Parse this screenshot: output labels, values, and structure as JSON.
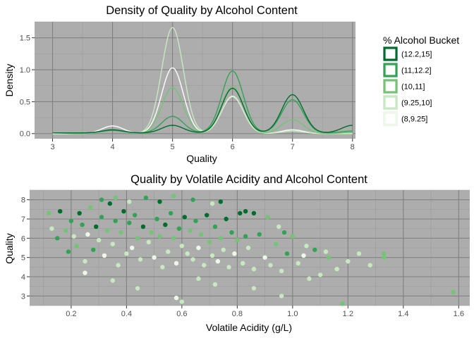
{
  "chart_data": [
    {
      "type": "line",
      "title": "Density of Quality by Alcohol Content",
      "xlabel": "Quality",
      "ylabel": "Density",
      "xlim": [
        2.7,
        8.05
      ],
      "ylim": [
        -0.08,
        1.75
      ],
      "x_ticks": [
        3,
        4,
        5,
        6,
        7,
        8
      ],
      "y_ticks": [
        0.0,
        0.5,
        1.0,
        1.5
      ],
      "y_tick_labels": [
        "0.0",
        "0.5",
        "1.0",
        "1.5"
      ],
      "grid": true,
      "legend_position": "right",
      "legend_title": "% Alcohol Bucket",
      "series": [
        {
          "name": "(12.2,15]",
          "color": "#006d2c",
          "baseline": 0.01,
          "peaks": [
            {
              "x": 4,
              "h": 0.05
            },
            {
              "x": 5,
              "h": 0.12
            },
            {
              "x": 6,
              "h": 0.7
            },
            {
              "x": 7,
              "h": 0.6
            },
            {
              "x": 8,
              "h": 0.12
            }
          ]
        },
        {
          "name": "(11,12.2]",
          "color": "#31a354",
          "baseline": 0.01,
          "peaks": [
            {
              "x": 4,
              "h": 0.04
            },
            {
              "x": 5,
              "h": 0.26
            },
            {
              "x": 6,
              "h": 0.97
            },
            {
              "x": 7,
              "h": 0.52
            },
            {
              "x": 8,
              "h": 0.03
            }
          ]
        },
        {
          "name": "(10,11]",
          "color": "#74c476",
          "baseline": 0.0,
          "peaks": [
            {
              "x": 3,
              "h": 0.01
            },
            {
              "x": 4,
              "h": 0.06
            },
            {
              "x": 5,
              "h": 0.72
            },
            {
              "x": 6,
              "h": 0.74
            },
            {
              "x": 7,
              "h": 0.22
            },
            {
              "x": 8,
              "h": 0.02
            }
          ]
        },
        {
          "name": "(9.25,10]",
          "color": "#c7e9c0",
          "baseline": 0.0,
          "peaks": [
            {
              "x": 3,
              "h": 0.01
            },
            {
              "x": 4,
              "h": 0.06
            },
            {
              "x": 5,
              "h": 1.66
            },
            {
              "x": 6,
              "h": 0.59
            },
            {
              "x": 7,
              "h": 0.04
            }
          ]
        },
        {
          "name": "(8,9.25]",
          "color": "#ffffff",
          "baseline": 0.0,
          "peaks": [
            {
              "x": 4,
              "h": 0.12
            },
            {
              "x": 5,
              "h": 1.03
            },
            {
              "x": 6,
              "h": 0.58
            },
            {
              "x": 7,
              "h": 0.06
            }
          ]
        }
      ]
    },
    {
      "type": "scatter",
      "title": "Quality by Volatile Acidity and Alcohol Content",
      "xlabel": "Volatile Acidity (g/L)",
      "ylabel": "Quality",
      "xlim": [
        0.05,
        1.64
      ],
      "ylim": [
        2.5,
        8.5
      ],
      "x_ticks": [
        0.2,
        0.4,
        0.6,
        0.8,
        1.0,
        1.2,
        1.4,
        1.6
      ],
      "y_ticks": [
        3,
        4,
        5,
        6,
        7,
        8
      ],
      "grid": true,
      "point_color_by": "% Alcohol Bucket",
      "points": [
        [
          0.12,
          7.3,
          2
        ],
        [
          0.13,
          6.5,
          3
        ],
        [
          0.15,
          6.0,
          1
        ],
        [
          0.16,
          7.4,
          0
        ],
        [
          0.18,
          6.4,
          2
        ],
        [
          0.19,
          5.3,
          1
        ],
        [
          0.2,
          6.9,
          1
        ],
        [
          0.21,
          6.1,
          3
        ],
        [
          0.22,
          5.6,
          2
        ],
        [
          0.23,
          7.3,
          0
        ],
        [
          0.24,
          6.7,
          1
        ],
        [
          0.25,
          4.8,
          3
        ],
        [
          0.26,
          6.2,
          4
        ],
        [
          0.27,
          7.6,
          2
        ],
        [
          0.28,
          5.4,
          1
        ],
        [
          0.29,
          6.6,
          0
        ],
        [
          0.3,
          5.9,
          3
        ],
        [
          0.31,
          7.1,
          1
        ],
        [
          0.32,
          5.1,
          4
        ],
        [
          0.33,
          6.4,
          2
        ],
        [
          0.34,
          7.8,
          0
        ],
        [
          0.35,
          5.7,
          3
        ],
        [
          0.36,
          6.9,
          1
        ],
        [
          0.37,
          4.6,
          3
        ],
        [
          0.38,
          6.3,
          2
        ],
        [
          0.39,
          7.4,
          0
        ],
        [
          0.4,
          5.2,
          3
        ],
        [
          0.41,
          6.8,
          1
        ],
        [
          0.42,
          5.5,
          4
        ],
        [
          0.43,
          7.2,
          1
        ],
        [
          0.44,
          6.0,
          2
        ],
        [
          0.45,
          4.9,
          3
        ],
        [
          0.46,
          6.6,
          0
        ],
        [
          0.47,
          8.1,
          1
        ],
        [
          0.48,
          5.8,
          3
        ],
        [
          0.49,
          6.3,
          2
        ],
        [
          0.5,
          5.0,
          4
        ],
        [
          0.51,
          7.0,
          1
        ],
        [
          0.52,
          6.1,
          2
        ],
        [
          0.53,
          4.5,
          3
        ],
        [
          0.54,
          6.7,
          0
        ],
        [
          0.55,
          5.3,
          3
        ],
        [
          0.56,
          7.3,
          1
        ],
        [
          0.57,
          6.0,
          2
        ],
        [
          0.58,
          4.7,
          4
        ],
        [
          0.59,
          6.5,
          1
        ],
        [
          0.6,
          5.6,
          3
        ],
        [
          0.61,
          7.1,
          0
        ],
        [
          0.62,
          5.2,
          3
        ],
        [
          0.63,
          6.4,
          2
        ],
        [
          0.64,
          4.9,
          3
        ],
        [
          0.65,
          6.9,
          1
        ],
        [
          0.66,
          5.5,
          4
        ],
        [
          0.67,
          6.2,
          2
        ],
        [
          0.68,
          4.6,
          3
        ],
        [
          0.69,
          7.2,
          0
        ],
        [
          0.7,
          5.8,
          2
        ],
        [
          0.71,
          5.1,
          3
        ],
        [
          0.72,
          6.6,
          1
        ],
        [
          0.73,
          4.8,
          4
        ],
        [
          0.74,
          6.0,
          2
        ],
        [
          0.75,
          5.4,
          3
        ],
        [
          0.76,
          7.0,
          0
        ],
        [
          0.77,
          4.5,
          3
        ],
        [
          0.78,
          6.3,
          1
        ],
        [
          0.79,
          5.2,
          4
        ],
        [
          0.8,
          5.9,
          2
        ],
        [
          0.81,
          7.3,
          0
        ],
        [
          0.82,
          4.7,
          3
        ],
        [
          0.83,
          6.1,
          1
        ],
        [
          0.84,
          5.5,
          3
        ],
        [
          0.86,
          4.4,
          3
        ],
        [
          0.88,
          6.2,
          1
        ],
        [
          0.9,
          5.0,
          4
        ],
        [
          0.92,
          4.6,
          3
        ],
        [
          0.94,
          5.7,
          2
        ],
        [
          0.96,
          4.3,
          3
        ],
        [
          0.98,
          5.2,
          1
        ],
        [
          1.0,
          6.1,
          2
        ],
        [
          1.02,
          4.7,
          3
        ],
        [
          1.04,
          5.1,
          4
        ],
        [
          1.06,
          3.9,
          3
        ],
        [
          1.08,
          5.4,
          1
        ],
        [
          1.1,
          4.1,
          3
        ],
        [
          1.13,
          5.0,
          2
        ],
        [
          1.16,
          4.4,
          3
        ],
        [
          1.18,
          2.6,
          2
        ],
        [
          1.2,
          4.8,
          3
        ],
        [
          1.24,
          5.2,
          3
        ],
        [
          1.28,
          4.6,
          3
        ],
        [
          1.33,
          5.2,
          2
        ],
        [
          1.33,
          5.0,
          2
        ],
        [
          1.58,
          3.2,
          2
        ],
        [
          0.25,
          4.2,
          4
        ],
        [
          0.35,
          3.8,
          3
        ],
        [
          0.44,
          3.4,
          3
        ],
        [
          0.58,
          2.9,
          4
        ],
        [
          0.6,
          2.7,
          3
        ],
        [
          0.66,
          3.9,
          3
        ],
        [
          0.72,
          3.6,
          3
        ],
        [
          0.86,
          3.4,
          3
        ],
        [
          0.96,
          3.0,
          3
        ],
        [
          0.31,
          8.0,
          1
        ],
        [
          0.36,
          8.1,
          2
        ],
        [
          0.41,
          7.9,
          3
        ],
        [
          0.52,
          7.9,
          0
        ],
        [
          0.57,
          8.2,
          2
        ],
        [
          0.64,
          8.0,
          1
        ],
        [
          0.71,
          7.8,
          3
        ],
        [
          0.74,
          7.9,
          0
        ],
        [
          0.83,
          7.4,
          0
        ],
        [
          0.86,
          7.3,
          0
        ],
        [
          0.91,
          7.1,
          2
        ],
        [
          0.95,
          6.6,
          3
        ],
        [
          0.97,
          6.3,
          1
        ],
        [
          1.05,
          5.6,
          3
        ],
        [
          1.12,
          5.3,
          3
        ]
      ]
    }
  ],
  "legend": {
    "title": "% Alcohol Bucket",
    "items": [
      {
        "label": "(12.2,15]",
        "color": "#006d2c"
      },
      {
        "label": "(11,12.2]",
        "color": "#31a354"
      },
      {
        "label": "(10,11]",
        "color": "#74c476"
      },
      {
        "label": "(9.25,10]",
        "color": "#c7e9c0"
      },
      {
        "label": "(8,9.25]",
        "color": "#edf8e9"
      }
    ]
  },
  "colors": {
    "panel_background": "#adadad",
    "major_grid": "#808080",
    "minor_grid": "#9c9c9c"
  }
}
